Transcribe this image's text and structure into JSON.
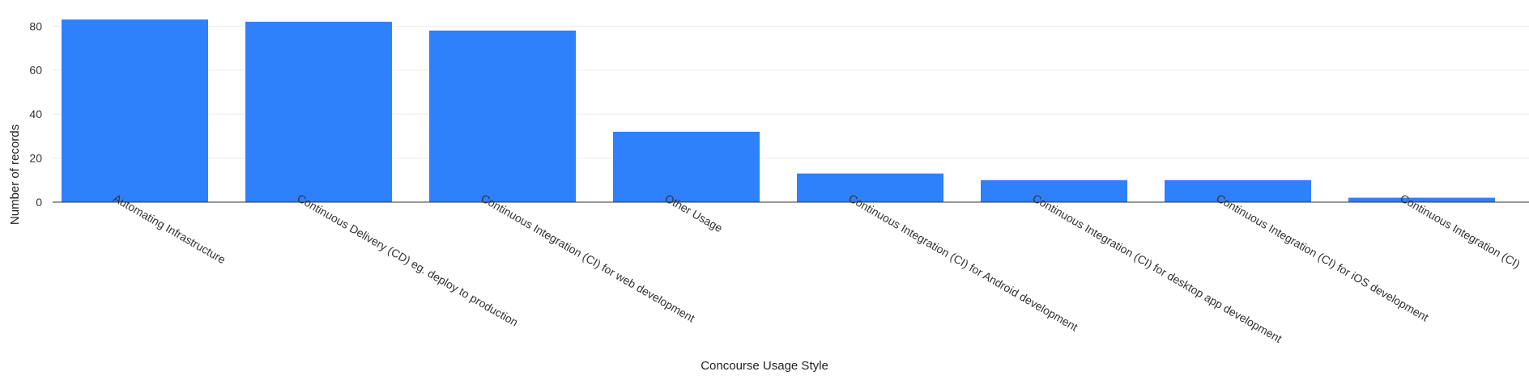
{
  "chart_data": {
    "type": "bar",
    "title": "",
    "xlabel": "Concourse Usage Style",
    "ylabel": "Number of records",
    "ylim": [
      0,
      86
    ],
    "yticks": [
      0,
      20,
      40,
      60,
      80
    ],
    "grid": true,
    "legend": "none",
    "colors": {
      "bar": "#2f80fb",
      "grid": "#ebebeb",
      "axis": "#333333"
    },
    "categories": [
      "Automating Infrastructure",
      "Continuous Delivery (CD) eg. deploy to production",
      "Continuous Integration (CI) for web development",
      "Other Usage",
      "Continuous Integration (CI) for Android development",
      "Continuous Integration (CI) for desktop app development",
      "Continuous Integration (CI) for iOS development",
      "Continuous Integration (CI)"
    ],
    "values": [
      83,
      82,
      78,
      32,
      13,
      10,
      10,
      2
    ]
  }
}
